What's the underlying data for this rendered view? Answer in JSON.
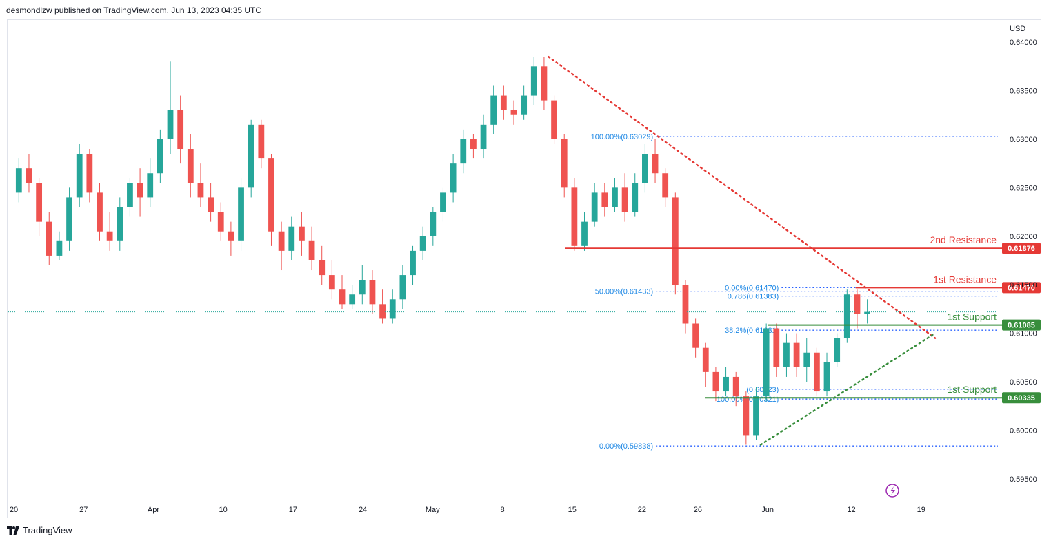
{
  "header": {
    "text": "desmondlzw published on TradingView.com, Jun 13, 2023 04:35 UTC"
  },
  "footer": {
    "brand": "TradingView"
  },
  "colors": {
    "up": "#26a69a",
    "down": "#ef5350",
    "resistance": "#e53935",
    "support": "#388e3c",
    "fib": "#2962ff",
    "fib_text": "#1e88e5",
    "grid_text": "#131722",
    "last_price_line": "#26a69a"
  },
  "chart_data": {
    "type": "candlestick",
    "currency_label": "USD",
    "y_ticks": [
      "0.64000",
      "0.63500",
      "0.63000",
      "0.62500",
      "0.62000",
      "0.61500",
      "0.61000",
      "0.60500",
      "0.60000",
      "0.59500"
    ],
    "y_tick_values": [
      0.64,
      0.635,
      0.63,
      0.625,
      0.62,
      0.615,
      0.61,
      0.605,
      0.6,
      0.595
    ],
    "ylim": [
      0.5925,
      0.6415
    ],
    "x_ticks": [
      "20",
      "27",
      "Apr",
      "10",
      "17",
      "24",
      "May",
      "8",
      "15",
      "22",
      "26",
      "Jun",
      "12",
      "19"
    ],
    "x_tick_index": [
      0,
      5,
      10,
      15,
      20,
      25,
      30,
      35,
      40,
      45,
      49,
      54,
      60,
      65
    ],
    "last_price": 0.6122,
    "levels": [
      {
        "name": "2nd Resistance",
        "price": 0.61876,
        "label": "0.61876",
        "kind": "resistance",
        "from_index": 39.5
      },
      {
        "name": "1st Resistance",
        "price": 0.6147,
        "label": "0.61470",
        "kind": "resistance",
        "from_index": 60.3
      },
      {
        "name": "1st Support",
        "price": 0.61085,
        "label": "0.61085",
        "kind": "support",
        "from_index": 54
      },
      {
        "name": "1st Support",
        "price": 0.60335,
        "label": "0.60335",
        "kind": "support",
        "from_index": 49.5
      }
    ],
    "fib_levels": [
      {
        "label": "100.00%(0.63029)",
        "price": 0.63029,
        "x_from": 46,
        "x_to": 70
      },
      {
        "label": "50.00%(0.61433)",
        "price": 0.61433,
        "x_from": 46,
        "x_to": 70
      },
      {
        "label": "0.00%(0.59838)",
        "price": 0.59838,
        "x_from": 46,
        "x_to": 70
      },
      {
        "label": "0.786(0.61383)",
        "price": 0.61383,
        "x_from": 55,
        "x_to": 70
      },
      {
        "label": "0.00%(0.61470)",
        "price": 0.6147,
        "x_from": 55,
        "x_to": 70
      },
      {
        "label": "38.2%(0.61031)",
        "price": 0.61031,
        "x_from": 55,
        "x_to": 70
      },
      {
        "label": "(0.60423)",
        "price": 0.60423,
        "x_from": 55,
        "x_to": 70
      },
      {
        "label": "100.00%(0.60321)",
        "price": 0.60321,
        "x_from": 55,
        "x_to": 70
      }
    ],
    "trendlines": [
      {
        "kind": "resistance",
        "from": [
          38.3,
          0.6385
        ],
        "to": [
          66,
          0.6095
        ]
      },
      {
        "kind": "support",
        "from": [
          53.5,
          0.5985
        ],
        "to": [
          66,
          0.61
        ]
      }
    ],
    "candles": [
      [
        0.6245,
        0.627,
        0.6235,
        0.628
      ],
      [
        0.627,
        0.6255,
        0.6245,
        0.6285
      ],
      [
        0.6255,
        0.6215,
        0.62,
        0.626
      ],
      [
        0.6215,
        0.618,
        0.617,
        0.6225
      ],
      [
        0.618,
        0.6195,
        0.6175,
        0.6205
      ],
      [
        0.6195,
        0.624,
        0.6185,
        0.625
      ],
      [
        0.624,
        0.6285,
        0.623,
        0.6295
      ],
      [
        0.6285,
        0.6245,
        0.6235,
        0.629
      ],
      [
        0.6245,
        0.6205,
        0.6195,
        0.6255
      ],
      [
        0.6205,
        0.6195,
        0.6185,
        0.6225
      ],
      [
        0.6195,
        0.623,
        0.6185,
        0.624
      ],
      [
        0.623,
        0.6255,
        0.622,
        0.626
      ],
      [
        0.6255,
        0.624,
        0.622,
        0.627
      ],
      [
        0.624,
        0.6265,
        0.623,
        0.628
      ],
      [
        0.6265,
        0.63,
        0.6255,
        0.631
      ],
      [
        0.63,
        0.633,
        0.6285,
        0.638
      ],
      [
        0.633,
        0.629,
        0.6275,
        0.6345
      ],
      [
        0.629,
        0.6255,
        0.624,
        0.6305
      ],
      [
        0.6255,
        0.624,
        0.623,
        0.6275
      ],
      [
        0.624,
        0.6225,
        0.6215,
        0.6255
      ],
      [
        0.6225,
        0.6205,
        0.6195,
        0.6235
      ],
      [
        0.6205,
        0.6195,
        0.618,
        0.6215
      ],
      [
        0.6195,
        0.625,
        0.6185,
        0.626
      ],
      [
        0.625,
        0.6315,
        0.624,
        0.632
      ],
      [
        0.6315,
        0.628,
        0.627,
        0.632
      ],
      [
        0.628,
        0.6205,
        0.619,
        0.6285
      ],
      [
        0.6205,
        0.6185,
        0.6165,
        0.6215
      ],
      [
        0.6185,
        0.621,
        0.6175,
        0.622
      ],
      [
        0.621,
        0.6195,
        0.618,
        0.6225
      ],
      [
        0.6195,
        0.6175,
        0.6165,
        0.621
      ],
      [
        0.6175,
        0.616,
        0.615,
        0.619
      ],
      [
        0.616,
        0.6145,
        0.6135,
        0.6175
      ],
      [
        0.6145,
        0.613,
        0.6125,
        0.616
      ],
      [
        0.613,
        0.614,
        0.6125,
        0.615
      ],
      [
        0.614,
        0.6155,
        0.613,
        0.617
      ],
      [
        0.6155,
        0.613,
        0.612,
        0.6165
      ],
      [
        0.613,
        0.6115,
        0.611,
        0.6145
      ],
      [
        0.6115,
        0.6135,
        0.611,
        0.6145
      ],
      [
        0.6135,
        0.616,
        0.6125,
        0.617
      ],
      [
        0.616,
        0.6185,
        0.615,
        0.619
      ],
      [
        0.6185,
        0.62,
        0.6175,
        0.621
      ],
      [
        0.62,
        0.6225,
        0.619,
        0.623
      ],
      [
        0.6225,
        0.6245,
        0.6215,
        0.625
      ],
      [
        0.6245,
        0.6275,
        0.6235,
        0.6285
      ],
      [
        0.6275,
        0.63,
        0.6265,
        0.631
      ],
      [
        0.63,
        0.629,
        0.628,
        0.6305
      ],
      [
        0.629,
        0.6315,
        0.628,
        0.6325
      ],
      [
        0.6315,
        0.6345,
        0.6305,
        0.6355
      ],
      [
        0.6345,
        0.633,
        0.632,
        0.6355
      ],
      [
        0.633,
        0.6325,
        0.6315,
        0.634
      ],
      [
        0.6325,
        0.6345,
        0.632,
        0.6355
      ],
      [
        0.6345,
        0.6375,
        0.6335,
        0.6385
      ],
      [
        0.6375,
        0.634,
        0.633,
        0.6385
      ],
      [
        0.634,
        0.63,
        0.6295,
        0.6345
      ],
      [
        0.63,
        0.625,
        0.624,
        0.6305
      ],
      [
        0.625,
        0.619,
        0.6185,
        0.626
      ],
      [
        0.619,
        0.6215,
        0.6185,
        0.6225
      ],
      [
        0.6215,
        0.6245,
        0.621,
        0.6255
      ],
      [
        0.6245,
        0.623,
        0.622,
        0.6255
      ],
      [
        0.623,
        0.625,
        0.6225,
        0.626
      ],
      [
        0.625,
        0.6225,
        0.6215,
        0.6265
      ],
      [
        0.6225,
        0.6255,
        0.622,
        0.6265
      ],
      [
        0.6255,
        0.6285,
        0.6245,
        0.6295
      ],
      [
        0.6285,
        0.6265,
        0.6255,
        0.63
      ],
      [
        0.6265,
        0.624,
        0.623,
        0.627
      ],
      [
        0.624,
        0.615,
        0.614,
        0.6245
      ],
      [
        0.615,
        0.611,
        0.61,
        0.6155
      ],
      [
        0.611,
        0.6085,
        0.6075,
        0.6115
      ],
      [
        0.6085,
        0.606,
        0.6045,
        0.609
      ],
      [
        0.606,
        0.604,
        0.603,
        0.6065
      ],
      [
        0.604,
        0.6055,
        0.6035,
        0.6065
      ],
      [
        0.6055,
        0.6035,
        0.6025,
        0.606
      ],
      [
        0.6035,
        0.5995,
        0.5985,
        0.604
      ],
      [
        0.5995,
        0.6035,
        0.599,
        0.6045
      ],
      [
        0.6035,
        0.6105,
        0.603,
        0.611
      ],
      [
        0.6105,
        0.6065,
        0.6055,
        0.611
      ],
      [
        0.6065,
        0.609,
        0.6055,
        0.61
      ],
      [
        0.609,
        0.6065,
        0.6055,
        0.61
      ],
      [
        0.6065,
        0.608,
        0.605,
        0.6095
      ],
      [
        0.608,
        0.604,
        0.6035,
        0.6085
      ],
      [
        0.604,
        0.607,
        0.6035,
        0.608
      ],
      [
        0.607,
        0.6095,
        0.6065,
        0.61
      ],
      [
        0.6095,
        0.614,
        0.609,
        0.6145
      ],
      [
        0.614,
        0.612,
        0.6105,
        0.6145
      ],
      [
        0.612,
        0.6122,
        0.611,
        0.6135
      ]
    ]
  }
}
